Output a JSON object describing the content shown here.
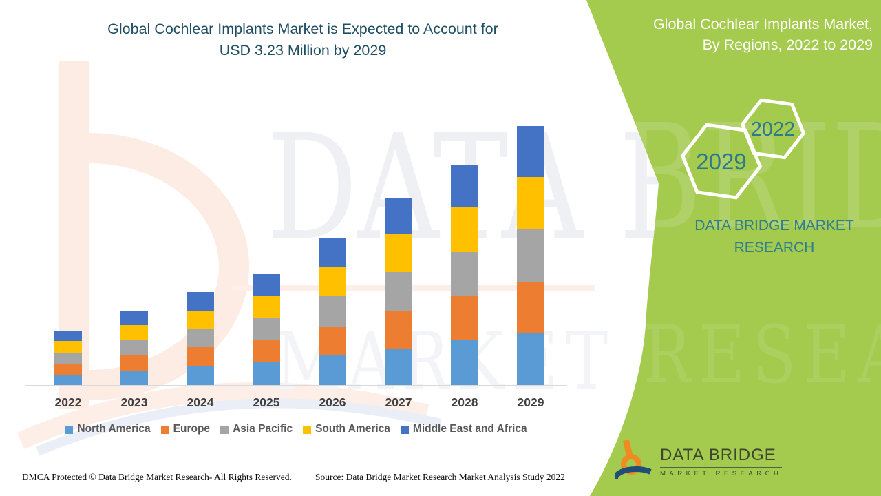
{
  "title": {
    "line1": "Global Cochlear Implants Market is Expected to Account for",
    "line2": "USD 3.23 Million by 2029",
    "color": "#1f4e63"
  },
  "band": {
    "color": "#a4ca4e",
    "heading_line1": "Global Cochlear Implants Market,",
    "heading_line2": "By Regions, 2022 to 2029",
    "heading_color": "#ffffff",
    "hexagons": [
      {
        "label": "2022"
      },
      {
        "label": "2029"
      }
    ],
    "year_color": "#2d7a8e",
    "brand_line1": "DATA BRIDGE MARKET",
    "brand_line2": "RESEARCH",
    "brand_color": "#2e7d90"
  },
  "watermark": {
    "line1": "DATA BRIDGE",
    "line2": "MARKET RESEARCH"
  },
  "logo": {
    "name1": "DATA BRIDGE",
    "name2": "MARKET RESEARCH",
    "orange": "#ef8b22",
    "blue": "#1f4e79"
  },
  "footer": {
    "dmca": "DMCA Protected © Data Bridge Market Research- All Rights Reserved.",
    "source": "Source: Data Bridge Market Research Market Analysis Study 2022"
  },
  "chart_data": {
    "type": "bar",
    "stacked": true,
    "title": "Global Cochlear Implants Market is Expected to Account for USD 3.23 Million by 2029",
    "subtitle": "Global Cochlear Implants Market, By Regions, 2022 to 2029",
    "unit": "USD Million",
    "categories": [
      "2022",
      "2023",
      "2024",
      "2025",
      "2026",
      "2027",
      "2028",
      "2029"
    ],
    "series": [
      {
        "name": "North America",
        "color": "#5b9bd5",
        "values": [
          0.13,
          0.18,
          0.23,
          0.29,
          0.37,
          0.46,
          0.56,
          0.65
        ]
      },
      {
        "name": "Europe",
        "color": "#ed7d31",
        "values": [
          0.14,
          0.19,
          0.24,
          0.28,
          0.36,
          0.46,
          0.56,
          0.64
        ]
      },
      {
        "name": "Asia Pacific",
        "color": "#a5a5a5",
        "values": [
          0.13,
          0.19,
          0.23,
          0.27,
          0.38,
          0.49,
          0.54,
          0.65
        ]
      },
      {
        "name": "South America",
        "color": "#ffc000",
        "values": [
          0.15,
          0.19,
          0.23,
          0.27,
          0.36,
          0.47,
          0.56,
          0.65
        ]
      },
      {
        "name": "Middle East and Africa",
        "color": "#4472c4",
        "values": [
          0.13,
          0.17,
          0.23,
          0.27,
          0.37,
          0.45,
          0.53,
          0.64
        ]
      }
    ],
    "totals": [
      0.68,
      0.92,
      1.16,
      1.38,
      1.84,
      2.33,
      2.75,
      3.23
    ],
    "ylim": [
      0,
      3.4
    ],
    "y_axis_visible": false,
    "grid": false,
    "legend_position": "bottom"
  }
}
